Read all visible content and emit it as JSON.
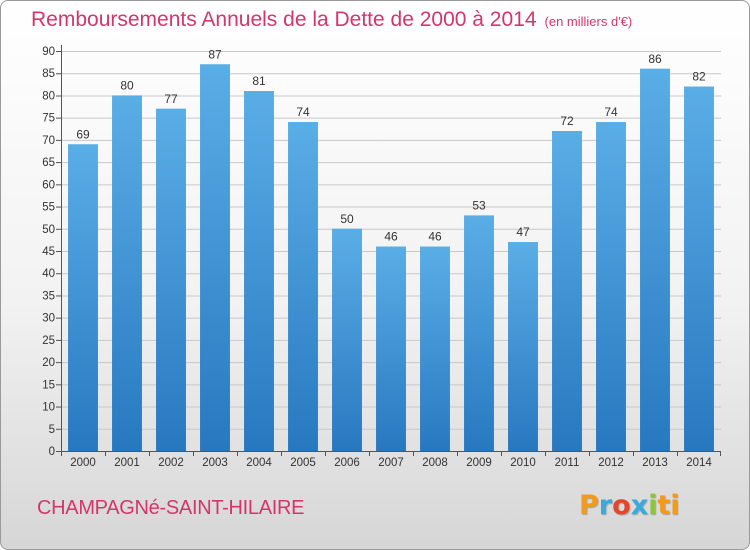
{
  "title": "Remboursements Annuels de la Dette de 2000 à 2014",
  "unit_label": "(en milliers d'€)",
  "commune": "CHAMPAGNé-SAINT-HILAIRE",
  "logo": {
    "letters": [
      "P",
      "r",
      "o",
      "x",
      "i",
      "t",
      "i"
    ]
  },
  "colors": {
    "title": "#d3376a",
    "bar_light": "#5aaee6",
    "bar_dark": "#2878c0",
    "grid": "#c8c8c8",
    "axis": "#555555"
  },
  "chart_data": {
    "type": "bar",
    "title": "Remboursements Annuels de la Dette de 2000 à 2014",
    "xlabel": "",
    "ylabel": "",
    "categories": [
      "2000",
      "2001",
      "2002",
      "2003",
      "2004",
      "2005",
      "2006",
      "2007",
      "2008",
      "2009",
      "2010",
      "2011",
      "2012",
      "2013",
      "2014"
    ],
    "values": [
      69,
      80,
      77,
      87,
      81,
      74,
      50,
      46,
      46,
      53,
      47,
      72,
      74,
      86,
      82
    ],
    "ylim": [
      0,
      90
    ],
    "yticks": [
      0,
      5,
      10,
      15,
      20,
      25,
      30,
      35,
      40,
      45,
      50,
      55,
      60,
      65,
      70,
      75,
      80,
      85,
      90
    ],
    "grid": true
  }
}
